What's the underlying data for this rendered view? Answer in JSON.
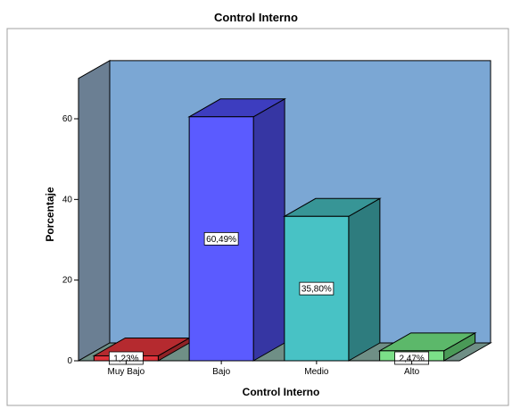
{
  "chart_data": {
    "type": "bar",
    "title": "Control Interno",
    "xlabel": "Control Interno",
    "ylabel": "Porcentaje",
    "categories": [
      "Muy Bajo",
      "Bajo",
      "Medio",
      "Alto"
    ],
    "values": [
      1.23,
      60.49,
      35.8,
      2.47
    ],
    "data_labels": [
      "1,23%",
      "60,49%",
      "35,80%",
      "2,47%"
    ],
    "yticks": [
      0,
      20,
      40,
      60
    ],
    "ylim": [
      0,
      70
    ],
    "grid": false,
    "three_d": true,
    "colors": {
      "background_wall": "#7ba7d4",
      "side_wall": "#6b7f93",
      "floor": "#6f8f86",
      "bars": [
        "#e0323a",
        "#5b5bff",
        "#48c2c5",
        "#7be088"
      ],
      "bar_tops": [
        "#b52a2f",
        "#3d3dbf",
        "#379596",
        "#5cb86a"
      ],
      "bar_sides": [
        "#8f2226",
        "#3636a3",
        "#2e7c7e",
        "#4a9a57"
      ]
    }
  }
}
